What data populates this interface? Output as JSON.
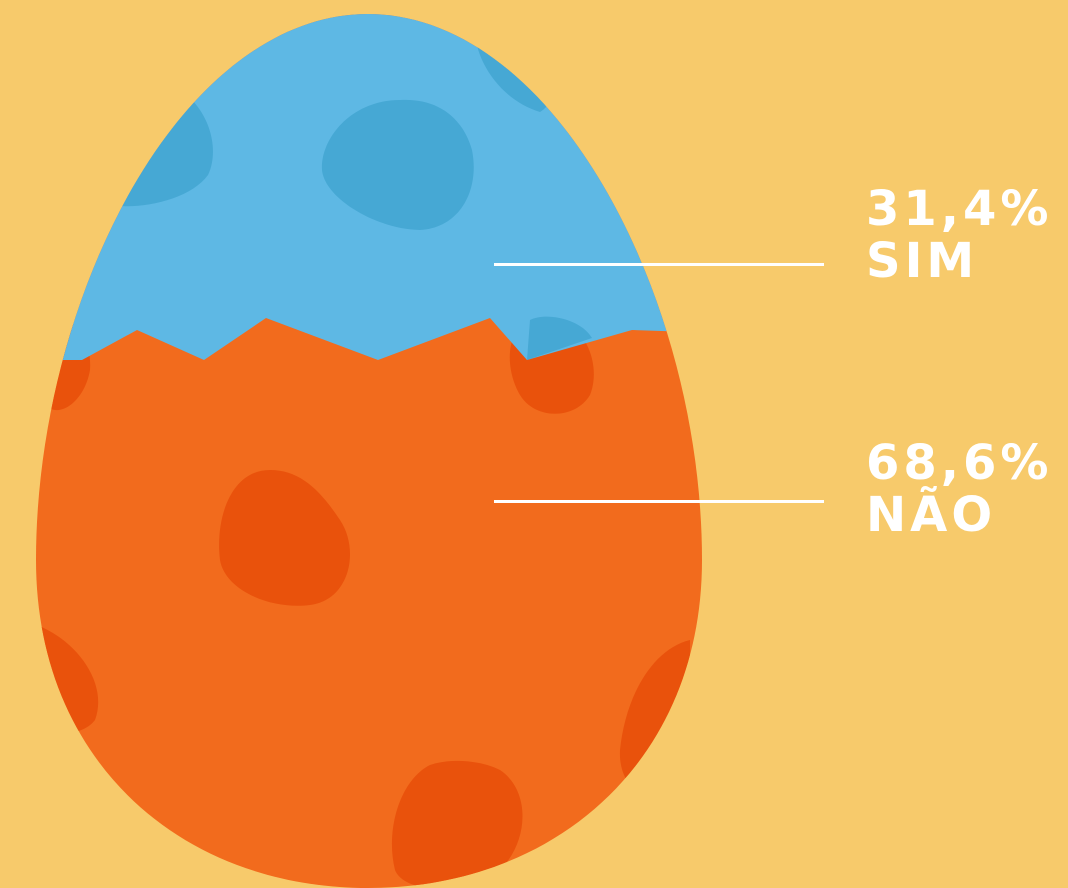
{
  "chart_data": {
    "type": "pie",
    "series": [
      {
        "category": "SIM",
        "value": 31.4,
        "label": "31,4%"
      },
      {
        "category": "NÃO",
        "value": 68.6,
        "label": "68,6%"
      }
    ],
    "colors": {
      "SIM": "#5EB8E4",
      "NÃO": "#F26B1D",
      "background": "#F7CA6B",
      "spots_sim": "#46A8D4",
      "spots_nao": "#E9520C"
    }
  }
}
